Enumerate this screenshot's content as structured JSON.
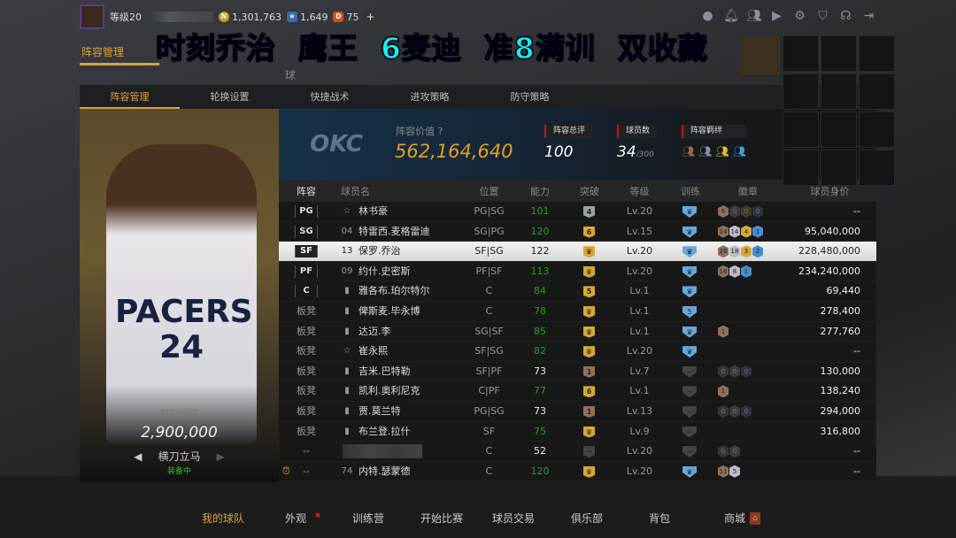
{
  "header": {
    "level": "等级20",
    "coins": "1,301,763",
    "stars": "1,649",
    "points": "75",
    "plus": "+",
    "icons": [
      "user-icon",
      "bell-icon",
      "friends-icon",
      "video-icon",
      "gear-icon",
      "shield-icon",
      "headset-icon",
      "logout-icon"
    ]
  },
  "overlay_caption": "时刻乔治  鹰王  6麦迪  准8满训  双收藏",
  "main_tabs": [
    "阵容管理",
    "球"
  ],
  "sub_tabs": [
    "阵容管理",
    "轮换设置",
    "快捷战术",
    "进攻策略",
    "防守策略"
  ],
  "featured": {
    "jersey": "PACERS\n24",
    "value_label": "时刻价值",
    "value": "2,900,000",
    "skin": "横刀立马",
    "skin_status": "装备中"
  },
  "summary": {
    "logo": "OKC",
    "team_value_label": "阵容价值",
    "team_value": "562,164,640",
    "overall_label": "阵容总评",
    "overall": "100",
    "count_label": "球员数",
    "count": "34",
    "count_max": "/300",
    "bonds_label": "阵容羁绊"
  },
  "columns": [
    "阵容",
    "球员名",
    "位置",
    "能力",
    "突破",
    "等级",
    "训练",
    "徽章",
    "球员身价"
  ],
  "colors": {
    "accent": "#d9a23a",
    "green": "#2e9a2e",
    "bronze": "#8e7060",
    "silver": "#b9bdc8",
    "gold": "#d6a832",
    "blue": "#4a8ccc",
    "caption": "#12f0f0"
  },
  "rows": [
    {
      "slot": "PG",
      "icon": "star",
      "name": "林书豪",
      "pos": "PG|SG",
      "rating": "101",
      "green": true,
      "brk": "4",
      "brkType": "silver",
      "level": "Lv.20",
      "train": "crown",
      "badges": [
        [
          "6",
          "b"
        ],
        [
          "0",
          "s0"
        ],
        [
          "0",
          "g0"
        ],
        [
          "0",
          "u0"
        ]
      ],
      "value": "--"
    },
    {
      "slot": "SG",
      "icon": "04",
      "name": "特雷西.麦格雷迪",
      "pos": "SG|PG",
      "rating": "120",
      "green": true,
      "brk": "6",
      "brkType": "gold",
      "level": "Lv.15",
      "train": "crown",
      "badges": [
        [
          "14",
          "b"
        ],
        [
          "14",
          "s"
        ],
        [
          "4",
          "g"
        ],
        [
          "1",
          "u"
        ]
      ],
      "value": "95,040,000"
    },
    {
      "slot": "SF",
      "icon": "13",
      "name": "保罗.乔治",
      "pos": "SF|SG",
      "rating": "122",
      "green": false,
      "brk": "♛",
      "brkType": "gold",
      "level": "Lv.20",
      "train": "crown",
      "badges": [
        [
          "26",
          "b"
        ],
        [
          "18",
          "s"
        ],
        [
          "3",
          "g"
        ],
        [
          "2",
          "u"
        ]
      ],
      "value": "228,480,000",
      "selected": true
    },
    {
      "slot": "PF",
      "icon": "09",
      "name": "约什.史密斯",
      "pos": "PF|SF",
      "rating": "113",
      "green": true,
      "brk": "♛",
      "brkType": "gold",
      "level": "Lv.20",
      "train": "crown",
      "badges": [
        [
          "16",
          "b"
        ],
        [
          "8",
          "s"
        ],
        [
          "1",
          "u"
        ]
      ],
      "value": "234,240,000"
    },
    {
      "slot": "C",
      "icon": "bars",
      "name": "雅各布.珀尔特尔",
      "pos": "C",
      "rating": "84",
      "green": true,
      "brk": "5",
      "brkType": "gold",
      "level": "Lv.1",
      "train": "crown",
      "badges": [],
      "value": "69,440"
    },
    {
      "slot": "板凳",
      "icon": "bars",
      "name": "俾斯麦.毕永博",
      "pos": "C",
      "rating": "78",
      "green": true,
      "brk": "♛",
      "brkType": "gold",
      "level": "Lv.1",
      "train": "5",
      "badges": [],
      "value": "278,400"
    },
    {
      "slot": "板凳",
      "icon": "bars",
      "name": "达迈.李",
      "pos": "SG|SF",
      "rating": "85",
      "green": true,
      "brk": "♛",
      "brkType": "gold",
      "level": "Lv.1",
      "train": "crown",
      "badges": [
        [
          "1",
          "b"
        ]
      ],
      "value": "277,760"
    },
    {
      "slot": "板凳",
      "icon": "star",
      "name": "崔永熙",
      "pos": "SF|SG",
      "rating": "82",
      "green": true,
      "brk": "♛",
      "brkType": "gold",
      "level": "Lv.20",
      "train": "crown",
      "badges": [],
      "value": "--"
    },
    {
      "slot": "板凳",
      "icon": "bars",
      "name": "吉米.巴特勒",
      "pos": "SF|PF",
      "rating": "73",
      "green": false,
      "brk": "1",
      "brkType": "bronze",
      "level": "Lv.7",
      "train": "none",
      "badges": [
        [
          "0",
          "b0"
        ],
        [
          "0",
          "s0"
        ],
        [
          "0",
          "u0"
        ]
      ],
      "value": "130,000"
    },
    {
      "slot": "板凳",
      "icon": "bars",
      "name": "凯利.奥利尼克",
      "pos": "C|PF",
      "rating": "77",
      "green": true,
      "brk": "6",
      "brkType": "gold",
      "level": "Lv.1",
      "train": "none",
      "badges": [
        [
          "1",
          "b"
        ]
      ],
      "value": "138,240"
    },
    {
      "slot": "板凳",
      "icon": "bars",
      "name": "贾.莫兰特",
      "pos": "PG|SG",
      "rating": "73",
      "green": false,
      "brk": "1",
      "brkType": "bronze",
      "level": "Lv.13",
      "train": "none",
      "badges": [
        [
          "0",
          "b0"
        ],
        [
          "0",
          "s0"
        ],
        [
          "0",
          "u0"
        ]
      ],
      "value": "294,000"
    },
    {
      "slot": "板凳",
      "icon": "bars",
      "name": "布兰登.拉什",
      "pos": "SF",
      "rating": "75",
      "green": true,
      "brk": "♛",
      "brkType": "gold",
      "level": "Lv.9",
      "train": "none",
      "badges": [],
      "value": "316,800"
    },
    {
      "slot": "--",
      "icon": "blur",
      "name": "",
      "pos": "C",
      "rating": "52",
      "green": false,
      "brk": "−",
      "brkType": "none",
      "level": "Lv.20",
      "train": "none",
      "badges": [
        [
          "0",
          "b0"
        ],
        [
          "0",
          "s0"
        ]
      ],
      "value": "--"
    },
    {
      "slot": "--",
      "icon": "74",
      "name": "内特.瑟蒙德",
      "pos": "C",
      "rating": "120",
      "green": true,
      "brk": "♛",
      "brkType": "gold",
      "level": "Lv.20",
      "train": "crown",
      "badges": [
        [
          "11",
          "b"
        ],
        [
          "5",
          "s"
        ]
      ],
      "value": "--",
      "alarm": true
    }
  ],
  "bottom_nav": [
    "我的球队",
    "外观",
    "训练营",
    "开始比赛",
    "球员交易",
    "俱乐部",
    "背包",
    "商城"
  ]
}
